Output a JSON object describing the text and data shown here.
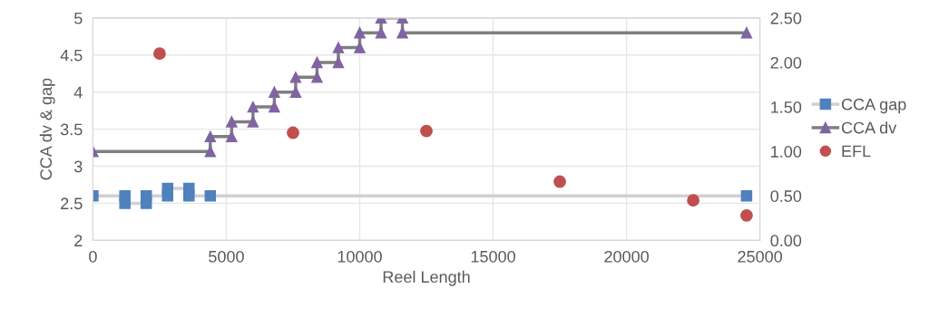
{
  "chart_data": {
    "type": "line",
    "xlabel": "Reel Length",
    "ylabel": "CCA dv & gap",
    "xlim": [
      0,
      25000
    ],
    "xticks": [
      0,
      5000,
      10000,
      15000,
      20000,
      25000
    ],
    "ylim": [
      2,
      5
    ],
    "yticks": [
      2,
      2.5,
      3,
      3.5,
      4,
      4.5,
      5
    ],
    "y2lim": [
      0,
      2.5
    ],
    "y2ticks": [
      {
        "value": 0,
        "label": "0.00"
      },
      {
        "value": 0.5,
        "label": "0.50"
      },
      {
        "value": 1,
        "label": "1.00"
      },
      {
        "value": 1.5,
        "label": "1.50"
      },
      {
        "value": 2,
        "label": "2.00"
      },
      {
        "value": 2.5,
        "label": "2.50"
      }
    ],
    "grid": true,
    "legend": "right",
    "series": [
      {
        "name": "CCA gap",
        "marker": "square",
        "color": "#4f81bd",
        "x": [
          0,
          1200,
          1200,
          2000,
          2000,
          2800,
          2800,
          3600,
          3600,
          4400,
          24500
        ],
        "values": [
          2.6,
          2.6,
          2.5,
          2.5,
          2.6,
          2.6,
          2.7,
          2.7,
          2.6,
          2.6,
          2.6
        ]
      },
      {
        "name": "CCA dv",
        "marker": "triangle",
        "color": "#8064a2",
        "x": [
          0,
          4400,
          4400,
          5200,
          5200,
          6000,
          6000,
          6800,
          6800,
          7600,
          7600,
          8400,
          8400,
          9200,
          9200,
          10000,
          10000,
          10800,
          10800,
          11600,
          11600,
          24500
        ],
        "values": [
          3.2,
          3.2,
          3.4,
          3.4,
          3.6,
          3.6,
          3.8,
          3.8,
          4.0,
          4.0,
          4.2,
          4.2,
          4.4,
          4.4,
          4.6,
          4.6,
          4.8,
          4.8,
          5.0,
          5.0,
          4.8,
          4.8
        ]
      },
      {
        "name": "EFL",
        "type": "scatter",
        "marker": "circle",
        "axis": "y2",
        "color": "#c0504d",
        "x": [
          2500,
          7500,
          12500,
          17500,
          22500,
          24500
        ],
        "values": [
          2.1,
          1.21,
          1.23,
          0.66,
          0.45,
          0.28
        ]
      }
    ]
  }
}
